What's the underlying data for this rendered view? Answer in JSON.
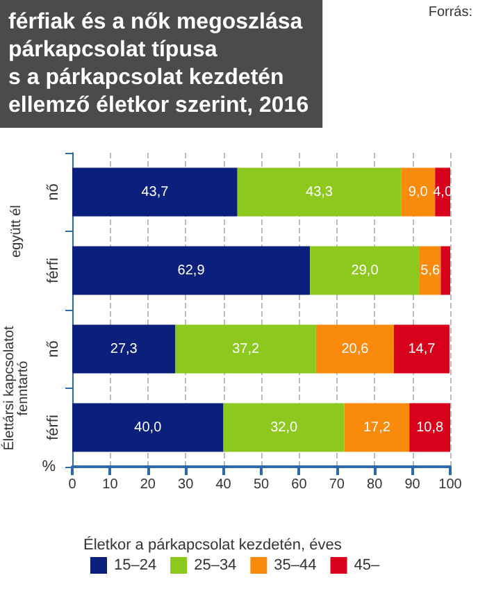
{
  "chart_data": {
    "type": "bar",
    "orientation": "horizontal",
    "stacked": true,
    "title": "férfiak és a nők megoszlása\npárkapcsolat típusa\ns a párkapcsolat kezdetén\nellemző életkor szerint, 2016",
    "xlabel": "%",
    "legend_title": "Életkor a párkapcsolat kezdetén, éves",
    "categories": [
      "nő",
      "férfi",
      "nő",
      "férfi"
    ],
    "series": [
      {
        "name": "15–24",
        "color": "#0b1f7c",
        "values": [
          43.7,
          62.9,
          27.3,
          40.0
        ],
        "value_labels": [
          "43,7",
          "62,9",
          "27,3",
          "40,0"
        ]
      },
      {
        "name": "25–34",
        "color": "#8cc81e",
        "values": [
          43.3,
          29.0,
          37.2,
          32.0
        ],
        "value_labels": [
          "43,3",
          "29,0",
          "37,2",
          "32,0"
        ]
      },
      {
        "name": "35–44",
        "color": "#f98a0c",
        "values": [
          9.0,
          5.6,
          20.6,
          17.2
        ],
        "value_labels": [
          "9,0",
          "5,6",
          "20,6",
          "17,2"
        ]
      },
      {
        "name": "45–",
        "color": "#d9001b",
        "values": [
          4.0,
          2.5,
          14.7,
          10.8
        ],
        "value_labels": [
          "4,0",
          null,
          "14,7",
          "10,8"
        ]
      }
    ],
    "xlim": [
      0,
      100
    ],
    "xticks": [
      0,
      10,
      20,
      30,
      40,
      50,
      60,
      70,
      80,
      90,
      100
    ],
    "grid": "x",
    "legend": "bottom",
    "annotations": [
      "együtt él",
      "Élettársi kapcsolatot fenntartó",
      "Forrás:"
    ]
  }
}
